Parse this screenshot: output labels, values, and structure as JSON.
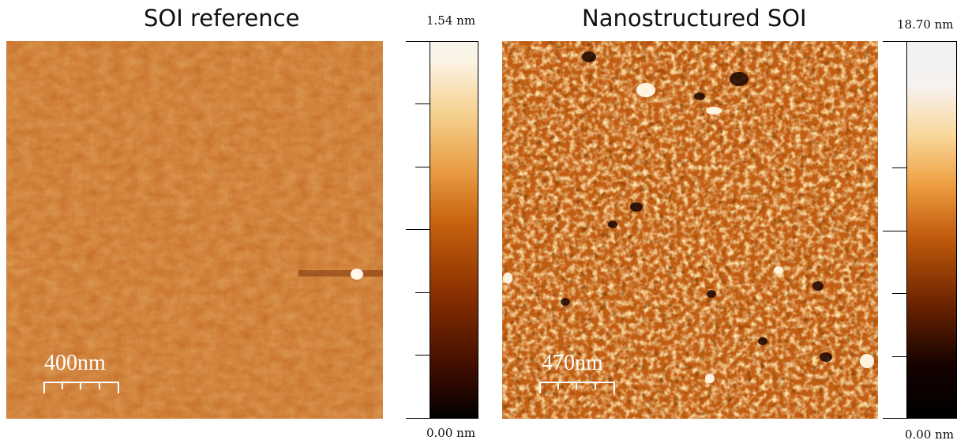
{
  "panels": [
    {
      "title": "SOI reference",
      "colorbar_max": "1.54 nm",
      "colorbar_min": "0.00 nm",
      "scale_bar_label": "400nm"
    },
    {
      "title": "Nanostructured SOI",
      "colorbar_max": "18.70 nm",
      "colorbar_min": "0.00 nm",
      "scale_bar_label": "470nm"
    }
  ],
  "colormap": {
    "stops": [
      "#000000",
      "#3a0b00",
      "#8a2f00",
      "#c8620f",
      "#e89a40",
      "#f5cf8a",
      "#fbf3e4",
      "#f2f2f4"
    ]
  }
}
